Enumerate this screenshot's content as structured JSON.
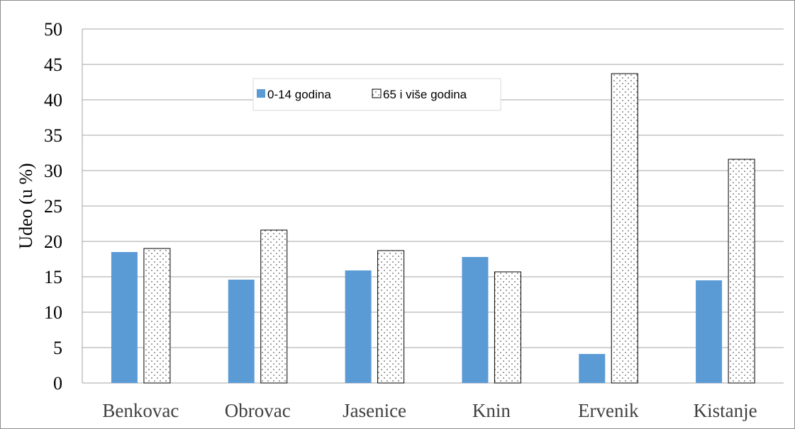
{
  "chart_data": {
    "type": "bar",
    "categories": [
      "Benkovac",
      "Obrovac",
      "Jasenice",
      "Knin",
      "Ervenik",
      "Kistanje"
    ],
    "series": [
      {
        "name": "0-14 godina",
        "values": [
          18.5,
          14.6,
          15.9,
          17.8,
          4.1,
          14.5
        ],
        "color": "#5b9bd5",
        "pattern": "solid"
      },
      {
        "name": "65 i više godina",
        "values": [
          19.0,
          21.6,
          18.7,
          15.7,
          43.7,
          31.6
        ],
        "color": "#ffffff",
        "pattern": "dotted"
      }
    ],
    "ylabel": "Udeo (u %)",
    "xlabel": "",
    "title": "",
    "ylim": [
      0,
      50
    ],
    "yticks": [
      0,
      5,
      10,
      15,
      20,
      25,
      30,
      35,
      40,
      45,
      50
    ],
    "grid": true,
    "legend_position": "top-center"
  }
}
